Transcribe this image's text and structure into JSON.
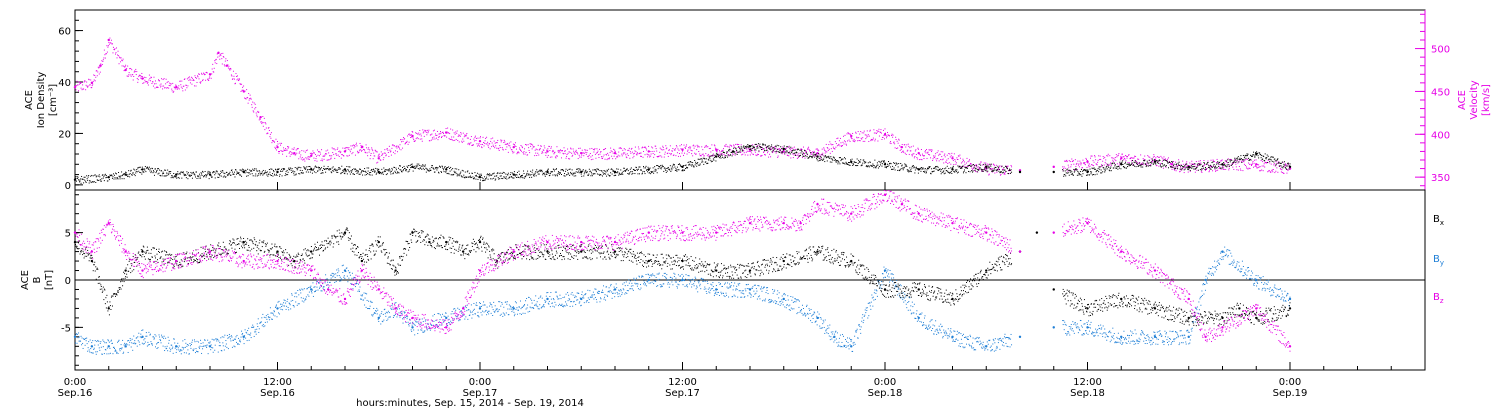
{
  "title": "",
  "footer": {
    "xlabel": "hours:minutes, Sep. 15, 2014 - Sep. 19, 2014"
  },
  "colors": {
    "black": "#000000",
    "magenta": "#e600e6",
    "blue": "#1f7fd6",
    "axis": "#000000"
  },
  "x_ticks": [
    {
      "hours": 0,
      "time": "0:00",
      "date": "Sep.16"
    },
    {
      "hours": 12,
      "time": "12:00",
      "date": "Sep.16"
    },
    {
      "hours": 24,
      "time": "0:00",
      "date": "Sep.17"
    },
    {
      "hours": 36,
      "time": "12:00",
      "date": "Sep.17"
    },
    {
      "hours": 48,
      "time": "0:00",
      "date": "Sep.18"
    },
    {
      "hours": 60,
      "time": "12:00",
      "date": "Sep.18"
    },
    {
      "hours": 72,
      "time": "0:00",
      "date": "Sep.19"
    }
  ],
  "panels": {
    "top": {
      "left_label_lines": [
        "ACE",
        "Ion Density"
      ],
      "left_unit": "[cm⁻³]",
      "right_label_lines": [
        "ACE",
        "Velocity"
      ],
      "right_unit": "[km/s]",
      "left_ticks": [
        "0",
        "20",
        "40",
        "60"
      ],
      "right_ticks": [
        "350",
        "400",
        "450",
        "500"
      ]
    },
    "bottom": {
      "left_label_lines": [
        "ACE",
        "B"
      ],
      "left_unit": "[nT]",
      "left_ticks": [
        "-5",
        "0",
        "5"
      ],
      "legend": [
        {
          "label": "Bx",
          "base": "B",
          "sub": "x",
          "color": "#000000"
        },
        {
          "label": "By",
          "base": "B",
          "sub": "y",
          "color": "#1f7fd6"
        },
        {
          "label": "Bz",
          "base": "B",
          "sub": "z",
          "color": "#e600e6"
        }
      ]
    }
  },
  "chart_data": [
    {
      "type": "scatter",
      "title": "",
      "xlabel": "hours:minutes, Sep. 15, 2014 - Sep. 19, 2014",
      "ylabel": "ACE Ion Density [cm^-3]",
      "y2label": "ACE Velocity [km/s]",
      "x_unit": "hours since Sep.16 0:00",
      "xlim": [
        0,
        80
      ],
      "ylim": [
        -2,
        68
      ],
      "y2lim": [
        335,
        545
      ],
      "grid": false,
      "series": [
        {
          "name": "Ion Density",
          "axis": "left",
          "color": "#000000",
          "x": [
            0,
            2,
            3,
            4,
            6,
            8,
            10,
            12,
            14,
            16,
            18,
            20,
            22,
            24,
            26,
            28,
            30,
            32,
            34,
            36,
            38,
            39,
            40,
            42,
            44,
            46,
            48,
            50,
            52,
            54,
            56,
            58,
            60,
            62,
            64,
            66,
            68,
            70,
            72
          ],
          "y": [
            2,
            3,
            4,
            6,
            4,
            4,
            5,
            5,
            6,
            6,
            5,
            7,
            6,
            3,
            4,
            5,
            5,
            5,
            6,
            7,
            11,
            13,
            15,
            14,
            11,
            9,
            8,
            6,
            6,
            7,
            5,
            5,
            5,
            8,
            9,
            7,
            8,
            12,
            7
          ]
        },
        {
          "name": "Velocity",
          "axis": "right",
          "color": "#e600e6",
          "x": [
            0,
            1,
            1.5,
            2,
            3,
            4,
            6,
            8,
            8.5,
            9,
            10,
            11,
            12,
            13,
            14,
            16,
            17,
            18,
            20,
            22,
            24,
            26,
            28,
            30,
            32,
            34,
            36,
            38,
            40,
            42,
            44,
            46,
            48,
            49,
            50,
            52,
            54,
            56,
            58,
            60,
            62,
            64,
            65,
            66,
            68,
            70,
            72
          ],
          "y": [
            455,
            460,
            480,
            510,
            475,
            465,
            455,
            470,
            495,
            480,
            450,
            420,
            385,
            378,
            375,
            380,
            385,
            372,
            398,
            402,
            392,
            385,
            380,
            378,
            378,
            380,
            382,
            382,
            382,
            380,
            378,
            398,
            400,
            385,
            378,
            372,
            360,
            358,
            362,
            368,
            372,
            370,
            365,
            362,
            365,
            365,
            360
          ]
        }
      ]
    },
    {
      "type": "scatter",
      "title": "",
      "xlabel": "hours:minutes, Sep. 15, 2014 - Sep. 19, 2014",
      "ylabel": "ACE B [nT]",
      "x_unit": "hours since Sep.16 0:00",
      "xlim": [
        0,
        80
      ],
      "ylim": [
        -9.5,
        9.5
      ],
      "zero_line": true,
      "grid": false,
      "series": [
        {
          "name": "Bx",
          "color": "#000000",
          "x": [
            0,
            1,
            2,
            3,
            4,
            6,
            8,
            10,
            12,
            13,
            14,
            16,
            17,
            18,
            19,
            20,
            21,
            22,
            23,
            24,
            25,
            26,
            28,
            30,
            32,
            34,
            36,
            38,
            40,
            42,
            44,
            46,
            48,
            50,
            52,
            54,
            56,
            57,
            58,
            60,
            62,
            64,
            66,
            68,
            69,
            70,
            72
          ],
          "y": [
            4,
            2,
            -3,
            1,
            3,
            2,
            3,
            4,
            3,
            2,
            3,
            5,
            2,
            4,
            1,
            5,
            4,
            4,
            3,
            4,
            2,
            3,
            3,
            3,
            3,
            2,
            2,
            1,
            1,
            2,
            3,
            2,
            -1,
            -1,
            -2,
            1,
            3,
            5,
            -1,
            -3,
            -2,
            -3,
            -4,
            -4,
            -3,
            -4,
            -3
          ]
        },
        {
          "name": "By",
          "color": "#1f7fd6",
          "x": [
            0,
            1,
            2,
            3,
            4,
            6,
            8,
            10,
            12,
            14,
            16,
            18,
            19,
            20,
            22,
            24,
            26,
            28,
            30,
            32,
            34,
            36,
            38,
            40,
            42,
            44,
            45,
            46,
            48,
            50,
            52,
            54,
            56,
            58,
            60,
            62,
            64,
            66,
            67,
            68,
            70,
            72
          ],
          "y": [
            -6,
            -7,
            -7,
            -7,
            -6,
            -7,
            -7,
            -6,
            -3,
            -1,
            1,
            -4,
            -3,
            -5,
            -4,
            -3,
            -3,
            -2,
            -2,
            -1,
            0,
            0,
            -1,
            -1,
            -2,
            -4,
            -6,
            -7,
            1,
            -4,
            -6,
            -7,
            -6,
            -5,
            -5,
            -6,
            -6,
            -6,
            0,
            3,
            0,
            -2
          ]
        },
        {
          "name": "Bz",
          "color": "#e600e6",
          "x": [
            0,
            1,
            2,
            3,
            4,
            6,
            8,
            10,
            12,
            14,
            15,
            16,
            17,
            18,
            19,
            20,
            22,
            23,
            24,
            26,
            28,
            30,
            32,
            34,
            36,
            38,
            40,
            42,
            43,
            44,
            46,
            48,
            49,
            50,
            52,
            54,
            56,
            58,
            60,
            62,
            64,
            66,
            67,
            68,
            70,
            72
          ],
          "y": [
            5,
            3,
            6,
            3,
            1,
            2,
            3,
            2,
            2,
            1,
            -1,
            -2,
            1,
            -1,
            -3,
            -4,
            -5,
            -3,
            1,
            3,
            4,
            4,
            4,
            5,
            5,
            5,
            6,
            6,
            6,
            8,
            7,
            9,
            8,
            7,
            6,
            5,
            3,
            5,
            6,
            3,
            1,
            -2,
            -6,
            -5,
            -3,
            -7
          ]
        }
      ]
    }
  ]
}
